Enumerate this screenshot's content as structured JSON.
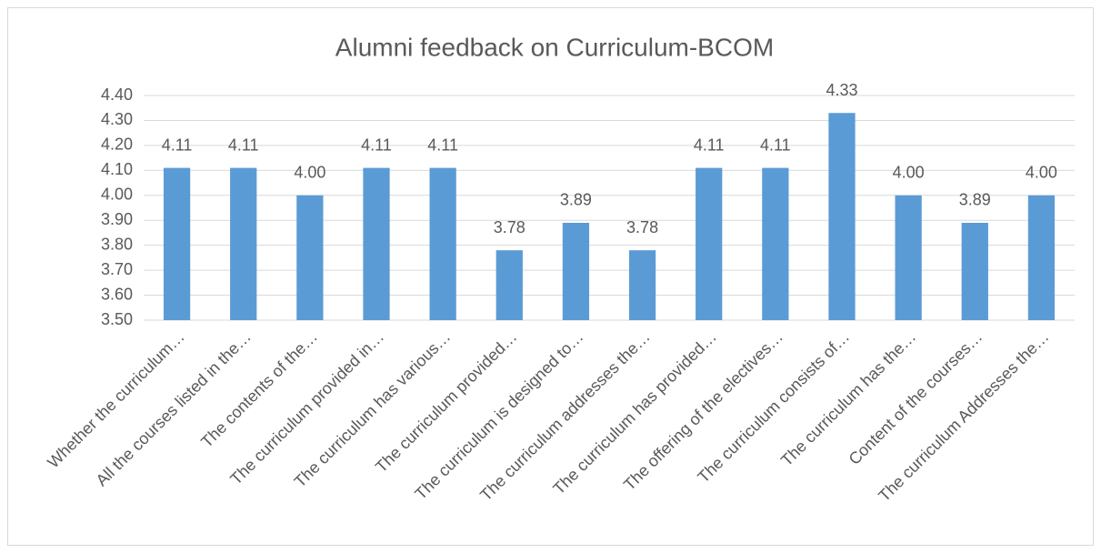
{
  "chart_data": {
    "type": "bar",
    "title": "Alumni feedback on Curriculum-BCOM",
    "categories": [
      "Whether the curriculum…",
      "All the courses listed in the…",
      "The contents of the…",
      "The curriculum provided in…",
      "The curriculum has various…",
      "The curriculum provided…",
      "The curriculum is designed to…",
      "The curriculum addresses the…",
      "The curriculum has provided…",
      "The offering of the electives…",
      "The curriculum consists of…",
      "The curriculum has the…",
      "Content of the courses…",
      "The curriculum Addresses the…"
    ],
    "values": [
      4.11,
      4.11,
      4.0,
      4.11,
      4.11,
      3.78,
      3.89,
      3.78,
      4.11,
      4.11,
      4.33,
      4.0,
      3.89,
      4.0
    ],
    "value_labels": [
      "4.11",
      "4.11",
      "4.00",
      "4.11",
      "4.11",
      "3.78",
      "3.89",
      "3.78",
      "4.11",
      "4.11",
      "4.33",
      "4.00",
      "3.89",
      "4.00"
    ],
    "color": "#5b9bd5",
    "ylim": [
      3.5,
      4.4
    ],
    "yticks": [
      {
        "value": 3.5,
        "label": "3.50"
      },
      {
        "value": 3.6,
        "label": "3.60"
      },
      {
        "value": 3.7,
        "label": "3.70"
      },
      {
        "value": 3.8,
        "label": "3.80"
      },
      {
        "value": 3.9,
        "label": "3.90"
      },
      {
        "value": 4.0,
        "label": "4.00"
      },
      {
        "value": 4.1,
        "label": "4.10"
      },
      {
        "value": 4.2,
        "label": "4.20"
      },
      {
        "value": 4.3,
        "label": "4.30"
      },
      {
        "value": 4.4,
        "label": "4.40"
      }
    ],
    "grid": true
  }
}
